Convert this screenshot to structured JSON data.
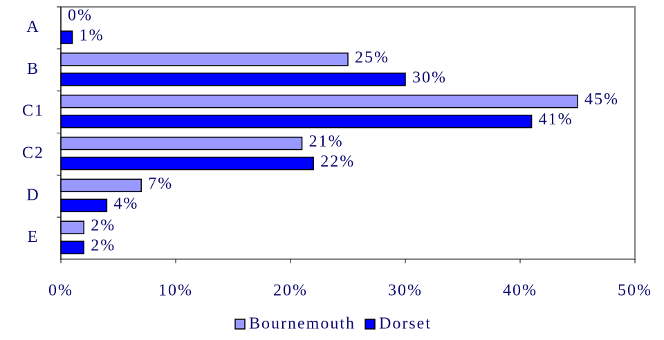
{
  "chart_data": {
    "type": "hbar",
    "categories": [
      "A",
      "B",
      "C1",
      "C2",
      "D",
      "E"
    ],
    "series": [
      {
        "name": "Bournemouth",
        "color": "#9999ff",
        "values": [
          0,
          25,
          45,
          21,
          7,
          2
        ],
        "value_labels": [
          "0%",
          "25%",
          "45%",
          "21%",
          "7%",
          "2%"
        ]
      },
      {
        "name": "Dorset",
        "color": "#0000ff",
        "values": [
          1,
          30,
          41,
          22,
          4,
          2
        ],
        "value_labels": [
          "1%",
          "30%",
          "41%",
          "22%",
          "4%",
          "2%"
        ]
      }
    ],
    "xlim": [
      0,
      50
    ],
    "xticks": [
      {
        "value": 0,
        "label": "0%"
      },
      {
        "value": 10,
        "label": "10%"
      },
      {
        "value": 20,
        "label": "20%"
      },
      {
        "value": 30,
        "label": "30%"
      },
      {
        "value": 40,
        "label": "40%"
      },
      {
        "value": 50,
        "label": "50%"
      }
    ],
    "legend": "bottom"
  }
}
